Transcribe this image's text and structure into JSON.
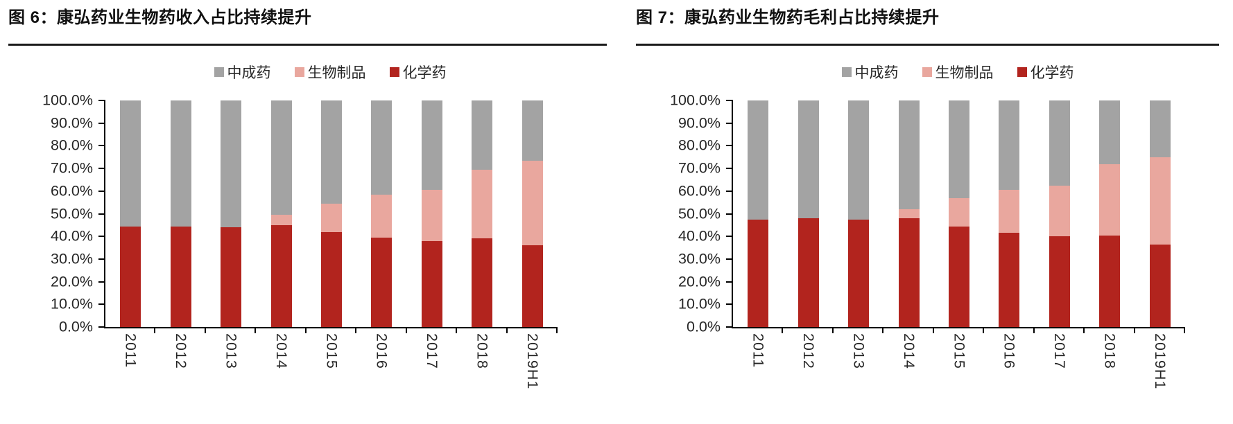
{
  "colors": {
    "tcm_gray": "#a3a3a3",
    "bio_pink": "#e9a79e",
    "chem_red": "#b2241e",
    "axis_black": "#000000",
    "label_gray": "#262626",
    "title_black": "#111111"
  },
  "chart_data": [
    {
      "type": "bar",
      "stacked": true,
      "title": "图 6：康弘药业生物药收入占比持续提升",
      "categories": [
        "2011",
        "2012",
        "2013",
        "2014",
        "2015",
        "2016",
        "2017",
        "2018",
        "2019H1"
      ],
      "series": [
        {
          "name": "化学药",
          "color": "#b2241e",
          "values": [
            44.5,
            44.5,
            44.0,
            45.0,
            42.0,
            39.5,
            38.0,
            39.0,
            36.0
          ]
        },
        {
          "name": "生物制品",
          "color": "#e9a79e",
          "values": [
            0.0,
            0.0,
            0.0,
            4.5,
            12.5,
            19.0,
            22.5,
            30.5,
            37.5
          ]
        },
        {
          "name": "中成药",
          "color": "#a3a3a3",
          "values": [
            55.5,
            55.5,
            56.0,
            50.5,
            45.5,
            41.5,
            39.5,
            30.5,
            26.5
          ]
        }
      ],
      "legend": [
        "中成药",
        "生物制品",
        "化学药"
      ],
      "legend_position": "top",
      "ylim": [
        0,
        100
      ],
      "yticks": [
        "100.0%",
        "90.0%",
        "80.0%",
        "70.0%",
        "60.0%",
        "50.0%",
        "40.0%",
        "30.0%",
        "20.0%",
        "10.0%",
        "0.0%"
      ],
      "grid": false
    },
    {
      "type": "bar",
      "stacked": true,
      "title": "图 7：康弘药业生物药毛利占比持续提升",
      "categories": [
        "2011",
        "2012",
        "2013",
        "2014",
        "2015",
        "2016",
        "2017",
        "2018",
        "2019H1"
      ],
      "series": [
        {
          "name": "化学药",
          "color": "#b2241e",
          "values": [
            47.5,
            48.0,
            47.5,
            48.0,
            44.5,
            41.5,
            40.0,
            40.5,
            36.5
          ]
        },
        {
          "name": "生物制品",
          "color": "#e9a79e",
          "values": [
            0.0,
            0.0,
            0.0,
            4.0,
            12.5,
            19.0,
            22.5,
            31.5,
            38.5
          ]
        },
        {
          "name": "中成药",
          "color": "#a3a3a3",
          "values": [
            52.5,
            52.0,
            52.5,
            48.0,
            43.0,
            39.5,
            37.5,
            28.0,
            25.0
          ]
        }
      ],
      "legend": [
        "中成药",
        "生物制品",
        "化学药"
      ],
      "legend_position": "top",
      "ylim": [
        0,
        100
      ],
      "yticks": [
        "100.0%",
        "90.0%",
        "80.0%",
        "70.0%",
        "60.0%",
        "50.0%",
        "40.0%",
        "30.0%",
        "20.0%",
        "10.0%",
        "0.0%"
      ],
      "grid": false
    }
  ]
}
